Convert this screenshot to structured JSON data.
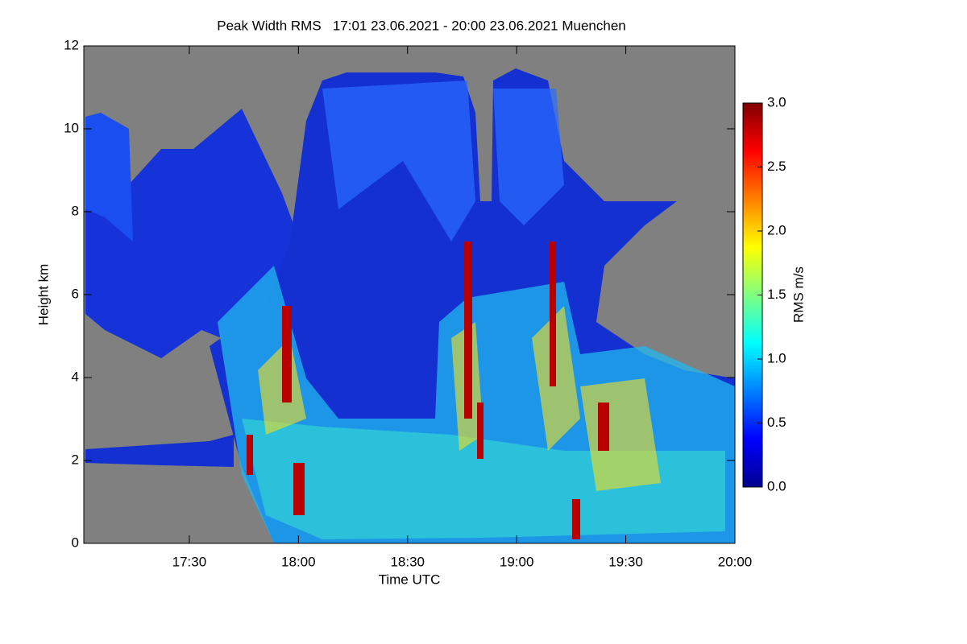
{
  "chart_data": {
    "type": "heatmap",
    "title": "Peak Width RMS   17:01 23.06.2021 - 20:00 23.06.2021 Muenchen",
    "x_label": "Time UTC",
    "y_label": "Height km",
    "xlim": [
      "17:01",
      "20:00"
    ],
    "xticks": [
      "17:30",
      "18:00",
      "18:30",
      "19:00",
      "19:30",
      "20:00"
    ],
    "ylim": [
      0,
      12
    ],
    "yticks": [
      0,
      2,
      4,
      6,
      8,
      10,
      12
    ],
    "colorbar": {
      "label": "RMS m/s",
      "colormap": "jet",
      "lim": [
        0,
        3
      ],
      "ticks": [
        {
          "value": 0,
          "label": "0.0"
        },
        {
          "value": 0.5,
          "label": "0.5"
        },
        {
          "value": 1,
          "label": "1.0"
        },
        {
          "value": 1.5,
          "label": "1.5"
        },
        {
          "value": 2,
          "label": "2.0"
        },
        {
          "value": 2.5,
          "label": "2.5"
        },
        {
          "value": 3,
          "label": "3.0"
        }
      ]
    }
  }
}
